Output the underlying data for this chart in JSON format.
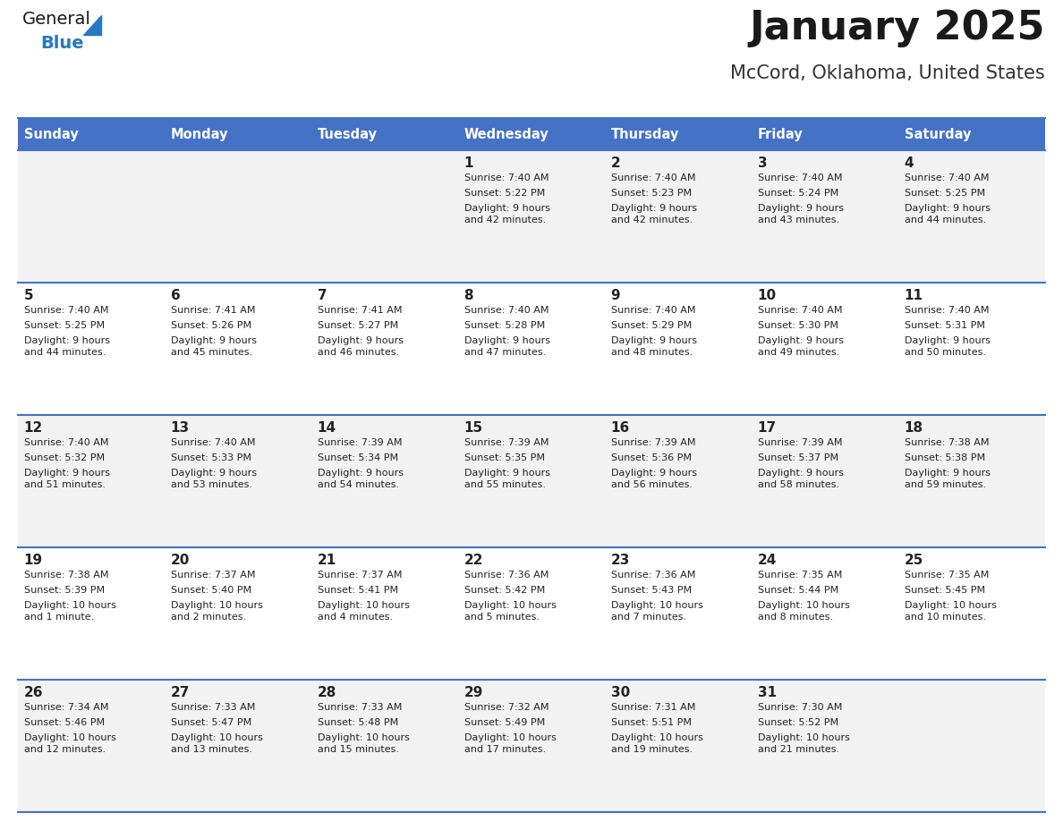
{
  "title": "January 2025",
  "subtitle": "McCord, Oklahoma, United States",
  "header_bg": "#4472C4",
  "header_text_color": "#FFFFFF",
  "row_bg_odd": "#F2F2F2",
  "row_bg_even": "#FFFFFF",
  "separator_color": "#4472C4",
  "days_of_week": [
    "Sunday",
    "Monday",
    "Tuesday",
    "Wednesday",
    "Thursday",
    "Friday",
    "Saturday"
  ],
  "calendar_data": [
    [
      {
        "day": null,
        "sunrise": null,
        "sunset": null,
        "daylight": null
      },
      {
        "day": null,
        "sunrise": null,
        "sunset": null,
        "daylight": null
      },
      {
        "day": null,
        "sunrise": null,
        "sunset": null,
        "daylight": null
      },
      {
        "day": 1,
        "sunrise": "7:40 AM",
        "sunset": "5:22 PM",
        "daylight": "9 hours\nand 42 minutes."
      },
      {
        "day": 2,
        "sunrise": "7:40 AM",
        "sunset": "5:23 PM",
        "daylight": "9 hours\nand 42 minutes."
      },
      {
        "day": 3,
        "sunrise": "7:40 AM",
        "sunset": "5:24 PM",
        "daylight": "9 hours\nand 43 minutes."
      },
      {
        "day": 4,
        "sunrise": "7:40 AM",
        "sunset": "5:25 PM",
        "daylight": "9 hours\nand 44 minutes."
      }
    ],
    [
      {
        "day": 5,
        "sunrise": "7:40 AM",
        "sunset": "5:25 PM",
        "daylight": "9 hours\nand 44 minutes."
      },
      {
        "day": 6,
        "sunrise": "7:41 AM",
        "sunset": "5:26 PM",
        "daylight": "9 hours\nand 45 minutes."
      },
      {
        "day": 7,
        "sunrise": "7:41 AM",
        "sunset": "5:27 PM",
        "daylight": "9 hours\nand 46 minutes."
      },
      {
        "day": 8,
        "sunrise": "7:40 AM",
        "sunset": "5:28 PM",
        "daylight": "9 hours\nand 47 minutes."
      },
      {
        "day": 9,
        "sunrise": "7:40 AM",
        "sunset": "5:29 PM",
        "daylight": "9 hours\nand 48 minutes."
      },
      {
        "day": 10,
        "sunrise": "7:40 AM",
        "sunset": "5:30 PM",
        "daylight": "9 hours\nand 49 minutes."
      },
      {
        "day": 11,
        "sunrise": "7:40 AM",
        "sunset": "5:31 PM",
        "daylight": "9 hours\nand 50 minutes."
      }
    ],
    [
      {
        "day": 12,
        "sunrise": "7:40 AM",
        "sunset": "5:32 PM",
        "daylight": "9 hours\nand 51 minutes."
      },
      {
        "day": 13,
        "sunrise": "7:40 AM",
        "sunset": "5:33 PM",
        "daylight": "9 hours\nand 53 minutes."
      },
      {
        "day": 14,
        "sunrise": "7:39 AM",
        "sunset": "5:34 PM",
        "daylight": "9 hours\nand 54 minutes."
      },
      {
        "day": 15,
        "sunrise": "7:39 AM",
        "sunset": "5:35 PM",
        "daylight": "9 hours\nand 55 minutes."
      },
      {
        "day": 16,
        "sunrise": "7:39 AM",
        "sunset": "5:36 PM",
        "daylight": "9 hours\nand 56 minutes."
      },
      {
        "day": 17,
        "sunrise": "7:39 AM",
        "sunset": "5:37 PM",
        "daylight": "9 hours\nand 58 minutes."
      },
      {
        "day": 18,
        "sunrise": "7:38 AM",
        "sunset": "5:38 PM",
        "daylight": "9 hours\nand 59 minutes."
      }
    ],
    [
      {
        "day": 19,
        "sunrise": "7:38 AM",
        "sunset": "5:39 PM",
        "daylight": "10 hours\nand 1 minute."
      },
      {
        "day": 20,
        "sunrise": "7:37 AM",
        "sunset": "5:40 PM",
        "daylight": "10 hours\nand 2 minutes."
      },
      {
        "day": 21,
        "sunrise": "7:37 AM",
        "sunset": "5:41 PM",
        "daylight": "10 hours\nand 4 minutes."
      },
      {
        "day": 22,
        "sunrise": "7:36 AM",
        "sunset": "5:42 PM",
        "daylight": "10 hours\nand 5 minutes."
      },
      {
        "day": 23,
        "sunrise": "7:36 AM",
        "sunset": "5:43 PM",
        "daylight": "10 hours\nand 7 minutes."
      },
      {
        "day": 24,
        "sunrise": "7:35 AM",
        "sunset": "5:44 PM",
        "daylight": "10 hours\nand 8 minutes."
      },
      {
        "day": 25,
        "sunrise": "7:35 AM",
        "sunset": "5:45 PM",
        "daylight": "10 hours\nand 10 minutes."
      }
    ],
    [
      {
        "day": 26,
        "sunrise": "7:34 AM",
        "sunset": "5:46 PM",
        "daylight": "10 hours\nand 12 minutes."
      },
      {
        "day": 27,
        "sunrise": "7:33 AM",
        "sunset": "5:47 PM",
        "daylight": "10 hours\nand 13 minutes."
      },
      {
        "day": 28,
        "sunrise": "7:33 AM",
        "sunset": "5:48 PM",
        "daylight": "10 hours\nand 15 minutes."
      },
      {
        "day": 29,
        "sunrise": "7:32 AM",
        "sunset": "5:49 PM",
        "daylight": "10 hours\nand 17 minutes."
      },
      {
        "day": 30,
        "sunrise": "7:31 AM",
        "sunset": "5:51 PM",
        "daylight": "10 hours\nand 19 minutes."
      },
      {
        "day": 31,
        "sunrise": "7:30 AM",
        "sunset": "5:52 PM",
        "daylight": "10 hours\nand 21 minutes."
      },
      {
        "day": null,
        "sunrise": null,
        "sunset": null,
        "daylight": null
      }
    ]
  ],
  "logo_color_general": "#1a1a1a",
  "logo_color_blue": "#2878BE",
  "logo_triangle_color": "#2878BE"
}
